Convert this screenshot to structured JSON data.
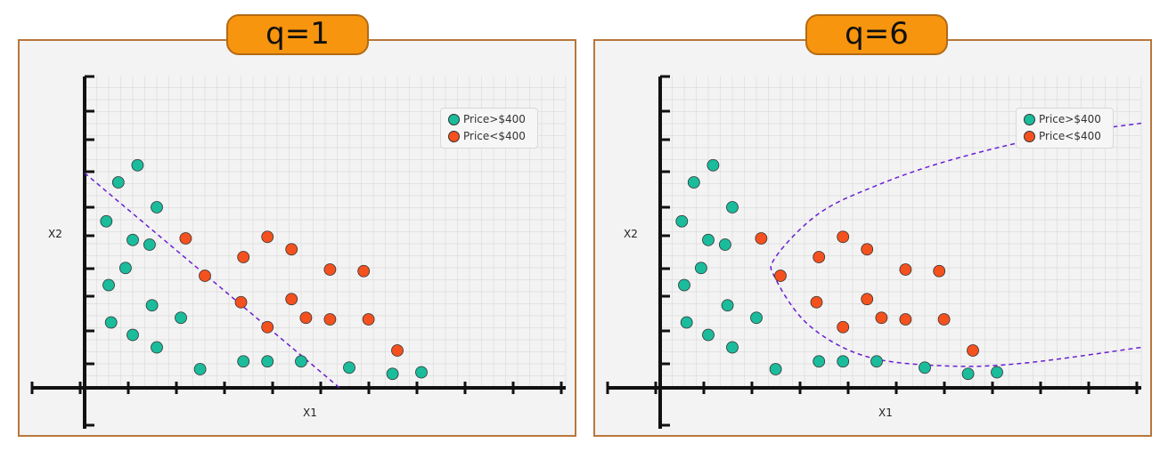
{
  "colors": {
    "above": "#1abc9c",
    "below": "#f4511e",
    "boundary": "#6a1fd1",
    "axis": "#111111",
    "grid": "#dcdcdc",
    "badge": "#f7950e"
  },
  "legend": {
    "above_label": "Price>$400",
    "below_label": "Price<$400"
  },
  "chart_data": [
    {
      "type": "scatter",
      "title": "q=1",
      "xlabel": "X1",
      "ylabel": "X2",
      "xlim": [
        0,
        10
      ],
      "ylim": [
        0,
        10
      ],
      "grid": true,
      "legend_position": "top-right",
      "series": [
        {
          "name": "Price>$400",
          "color": "#1abc9c",
          "points": [
            [
              0.45,
              5.35
            ],
            [
              0.7,
              6.6
            ],
            [
              1.1,
              7.15
            ],
            [
              0.5,
              3.3
            ],
            [
              0.85,
              3.85
            ],
            [
              1.0,
              4.75
            ],
            [
              1.35,
              4.6
            ],
            [
              1.5,
              5.8
            ],
            [
              1.4,
              2.65
            ],
            [
              0.55,
              2.1
            ],
            [
              1.0,
              1.7
            ],
            [
              1.5,
              1.3
            ],
            [
              2.0,
              2.25
            ],
            [
              2.4,
              0.6
            ],
            [
              3.3,
              0.85
            ],
            [
              3.8,
              0.85
            ],
            [
              4.5,
              0.85
            ],
            [
              5.5,
              0.65
            ],
            [
              6.4,
              0.45
            ],
            [
              7.0,
              0.5
            ]
          ]
        },
        {
          "name": "Price<$400",
          "color": "#f4511e",
          "points": [
            [
              2.1,
              4.8
            ],
            [
              2.5,
              3.6
            ],
            [
              3.25,
              2.75
            ],
            [
              3.3,
              4.2
            ],
            [
              3.8,
              4.85
            ],
            [
              4.3,
              4.45
            ],
            [
              3.8,
              1.95
            ],
            [
              4.3,
              2.85
            ],
            [
              4.6,
              2.25
            ],
            [
              5.1,
              3.8
            ],
            [
              5.1,
              2.2
            ],
            [
              5.8,
              3.75
            ],
            [
              5.9,
              2.2
            ],
            [
              6.5,
              1.2
            ]
          ]
        }
      ],
      "boundary": {
        "type": "linear",
        "from": [
          0,
          6.9
        ],
        "to": [
          5.3,
          0
        ]
      }
    },
    {
      "type": "scatter",
      "title": "q=6",
      "xlabel": "X1",
      "ylabel": "X2",
      "xlim": [
        0,
        10
      ],
      "ylim": [
        0,
        10
      ],
      "grid": true,
      "legend_position": "top-right",
      "series": [
        {
          "name": "Price>$400",
          "color": "#1abc9c",
          "points": [
            [
              0.45,
              5.35
            ],
            [
              0.7,
              6.6
            ],
            [
              1.1,
              7.15
            ],
            [
              0.5,
              3.3
            ],
            [
              0.85,
              3.85
            ],
            [
              1.0,
              4.75
            ],
            [
              1.35,
              4.6
            ],
            [
              1.5,
              5.8
            ],
            [
              1.4,
              2.65
            ],
            [
              0.55,
              2.1
            ],
            [
              1.0,
              1.7
            ],
            [
              1.5,
              1.3
            ],
            [
              2.0,
              2.25
            ],
            [
              2.4,
              0.6
            ],
            [
              3.3,
              0.85
            ],
            [
              3.8,
              0.85
            ],
            [
              4.5,
              0.85
            ],
            [
              5.5,
              0.65
            ],
            [
              6.4,
              0.45
            ],
            [
              7.0,
              0.5
            ]
          ]
        },
        {
          "name": "Price<$400",
          "color": "#f4511e",
          "points": [
            [
              2.1,
              4.8
            ],
            [
              2.5,
              3.6
            ],
            [
              3.25,
              2.75
            ],
            [
              3.3,
              4.2
            ],
            [
              3.8,
              4.85
            ],
            [
              4.3,
              4.45
            ],
            [
              3.8,
              1.95
            ],
            [
              4.3,
              2.85
            ],
            [
              4.6,
              2.25
            ],
            [
              5.1,
              3.8
            ],
            [
              5.1,
              2.2
            ],
            [
              5.8,
              3.75
            ],
            [
              5.9,
              2.2
            ],
            [
              6.5,
              1.2
            ]
          ]
        }
      ],
      "boundary": {
        "type": "curved",
        "points": [
          [
            10,
            8.5
          ],
          [
            8,
            8.05
          ],
          [
            6,
            7.3
          ],
          [
            4.5,
            6.5
          ],
          [
            3.3,
            5.6
          ],
          [
            2.4,
            4.2
          ],
          [
            2.4,
            3.5
          ],
          [
            3.1,
            2.0
          ],
          [
            4.3,
            1.0
          ],
          [
            6.0,
            0.7
          ],
          [
            7.6,
            0.8
          ],
          [
            10,
            1.3
          ]
        ]
      }
    }
  ]
}
